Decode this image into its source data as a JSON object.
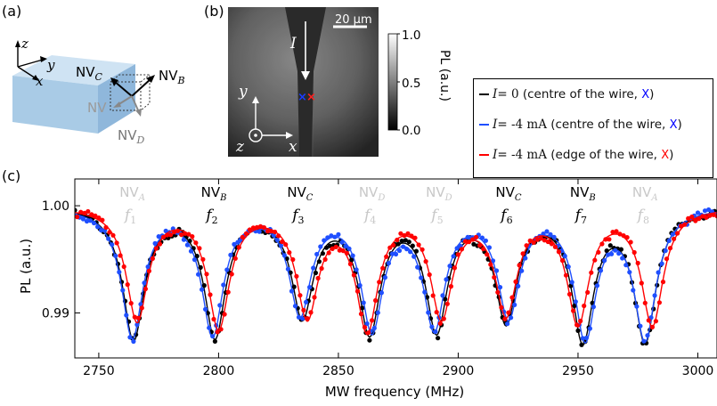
{
  "panels": {
    "a": "(a)",
    "b": "(b)",
    "c": "(c)"
  },
  "diagram_a": {
    "axes": {
      "z": "z",
      "y": "y",
      "x": "x"
    },
    "labels": {
      "nv_c": "NV",
      "nv_c_sub": "C",
      "nv_b": "NV",
      "nv_b_sub": "B",
      "nv_a": "NV",
      "nv_d": "NV",
      "nv_d_sub": "D"
    },
    "block_color": "#a9cbe6"
  },
  "image_b": {
    "scale_bar": "20 µm",
    "current_label": "I",
    "axis_y": "y",
    "axis_x": "x",
    "axis_z": "z",
    "colorbar_title": "PL (a.u.)",
    "colorbar_ticks": [
      "1.0",
      "0.5",
      "0.0"
    ],
    "marker_blue": "×",
    "marker_red": "×"
  },
  "legend": [
    {
      "dash": "—",
      "lhs": "I",
      "rhs": " = 0",
      "desc": " (centre of the wire, ",
      "mark": "X",
      "close": ")",
      "color": "#000000",
      "mark_color": "#0000ff"
    },
    {
      "dash": "—",
      "lhs": "I",
      "rhs": " = -4 mA",
      "desc": " (centre of the wire, ",
      "mark": "X",
      "close": ")",
      "color": "#1f4fff",
      "mark_color": "#0000ff"
    },
    {
      "dash": "—",
      "lhs": "I",
      "rhs": " = -4 mA",
      "desc": " (edge of the wire, ",
      "mark": "X",
      "close": ")",
      "color": "#ff0000",
      "mark_color": "#ff0000"
    }
  ],
  "chart_data": {
    "type": "line",
    "xlabel": "MW frequency (MHz)",
    "ylabel": "PL (a.u.)",
    "xlim": [
      2740,
      3008
    ],
    "ylim": [
      0.9858,
      1.0025
    ],
    "xticks": [
      2750,
      2800,
      2850,
      2900,
      2950,
      3000
    ],
    "yticks": [
      0.99,
      1.0
    ],
    "ytick_labels": [
      "0.99",
      "1.00"
    ],
    "peak_labels": [
      {
        "nv": "NV",
        "sub": "A",
        "f": "f",
        "fsub": "1",
        "x": 2764,
        "color": "#c8c8c8"
      },
      {
        "nv": "NV",
        "sub": "B",
        "f": "f",
        "fsub": "2",
        "x": 2798,
        "color": "#000000"
      },
      {
        "nv": "NV",
        "sub": "C",
        "f": "f",
        "fsub": "3",
        "x": 2834,
        "color": "#000000"
      },
      {
        "nv": "NV",
        "sub": "D",
        "f": "f",
        "fsub": "4",
        "x": 2864,
        "color": "#c8c8c8"
      },
      {
        "nv": "NV",
        "sub": "D",
        "f": "f",
        "fsub": "5",
        "x": 2892,
        "color": "#c8c8c8"
      },
      {
        "nv": "NV",
        "sub": "C",
        "f": "f",
        "fsub": "6",
        "x": 2921,
        "color": "#000000"
      },
      {
        "nv": "NV",
        "sub": "B",
        "f": "f",
        "fsub": "7",
        "x": 2952,
        "color": "#000000"
      },
      {
        "nv": "NV",
        "sub": "A",
        "f": "f",
        "fsub": "8",
        "x": 2978,
        "color": "#c8c8c8"
      }
    ],
    "series": [
      {
        "color": "#000000",
        "dips": [
          [
            2764.5,
            0.0122
          ],
          [
            2798.5,
            0.0118
          ],
          [
            2835.0,
            0.0098
          ],
          [
            2863.0,
            0.0112
          ],
          [
            2891.0,
            0.011
          ],
          [
            2920.0,
            0.0102
          ],
          [
            2952.0,
            0.012
          ],
          [
            2978.0,
            0.0122
          ]
        ]
      },
      {
        "color": "#1f4fff",
        "dips": [
          [
            2764.0,
            0.012
          ],
          [
            2797.5,
            0.0116
          ],
          [
            2834.0,
            0.0096
          ],
          [
            2864.0,
            0.011
          ],
          [
            2890.0,
            0.0108
          ],
          [
            2921.0,
            0.0098
          ],
          [
            2953.0,
            0.0118
          ],
          [
            2978.0,
            0.012
          ]
        ]
      },
      {
        "color": "#ff0000",
        "dips": [
          [
            2766.0,
            0.0105
          ],
          [
            2800.0,
            0.011
          ],
          [
            2837.0,
            0.0098
          ],
          [
            2862.0,
            0.011
          ],
          [
            2893.0,
            0.0098
          ],
          [
            2920.0,
            0.0095
          ],
          [
            2950.0,
            0.0105
          ],
          [
            2981.0,
            0.0108
          ]
        ]
      }
    ],
    "dip_width_mhz": 11,
    "marker_step_mhz": 1.5
  }
}
